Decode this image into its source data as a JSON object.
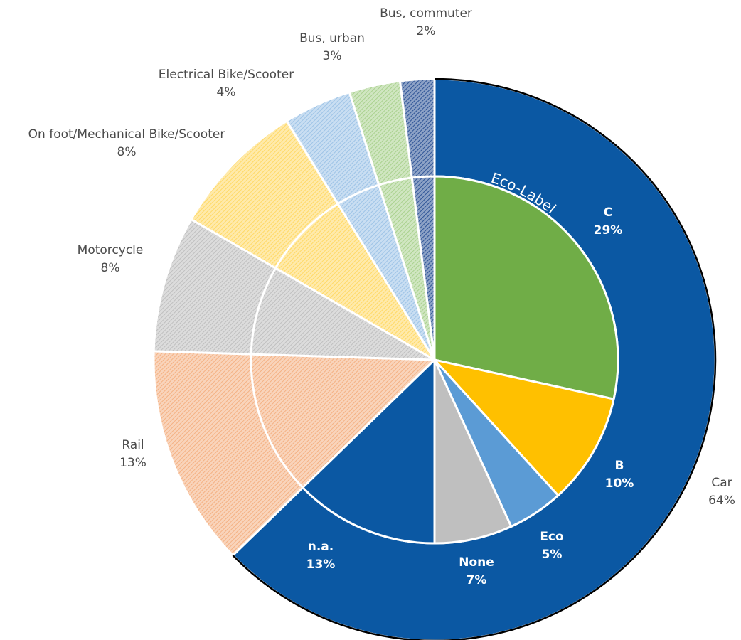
{
  "chart_data": {
    "type": "pie",
    "outer_ring": {
      "slices": [
        {
          "label": "Car",
          "value": 64,
          "value_text": "64%",
          "color": "#0b58a3"
        },
        {
          "label": "Rail",
          "value": 13,
          "value_text": "13%",
          "color": "#f4b183",
          "hatched": true
        },
        {
          "label": "Motorcycle",
          "value": 8,
          "value_text": "8%",
          "color": "#bfbfbf",
          "hatched": true
        },
        {
          "label": "On foot/Mechanical Bike/Scooter",
          "value": 8,
          "value_text": "8%",
          "color": "#ffd966",
          "hatched": true
        },
        {
          "label": "Electrical Bike/Scooter",
          "value": 4,
          "value_text": "4%",
          "color": "#9dc3e6",
          "hatched": true
        },
        {
          "label": "Bus, urban",
          "value": 3,
          "value_text": "3%",
          "color": "#a9d18e",
          "hatched": true
        },
        {
          "label": "Bus, commuter",
          "value": 2,
          "value_text": "2%",
          "color": "#2f5597",
          "hatched": true
        }
      ]
    },
    "inner_breakdown": {
      "title": "Eco-Label",
      "parent": "Car",
      "slices": [
        {
          "label": "C",
          "value": 29,
          "value_text": "29%",
          "color": "#70ad47"
        },
        {
          "label": "B",
          "value": 10,
          "value_text": "10%",
          "color": "#ffc000"
        },
        {
          "label": "Eco",
          "value": 5,
          "value_text": "5%",
          "color": "#5b9bd5"
        },
        {
          "label": "None",
          "value": 7,
          "value_text": "7%",
          "color": "#bfbfbf"
        },
        {
          "label": "n.a.",
          "value": 13,
          "value_text": "13%",
          "color": "#0b58a3"
        }
      ]
    }
  }
}
